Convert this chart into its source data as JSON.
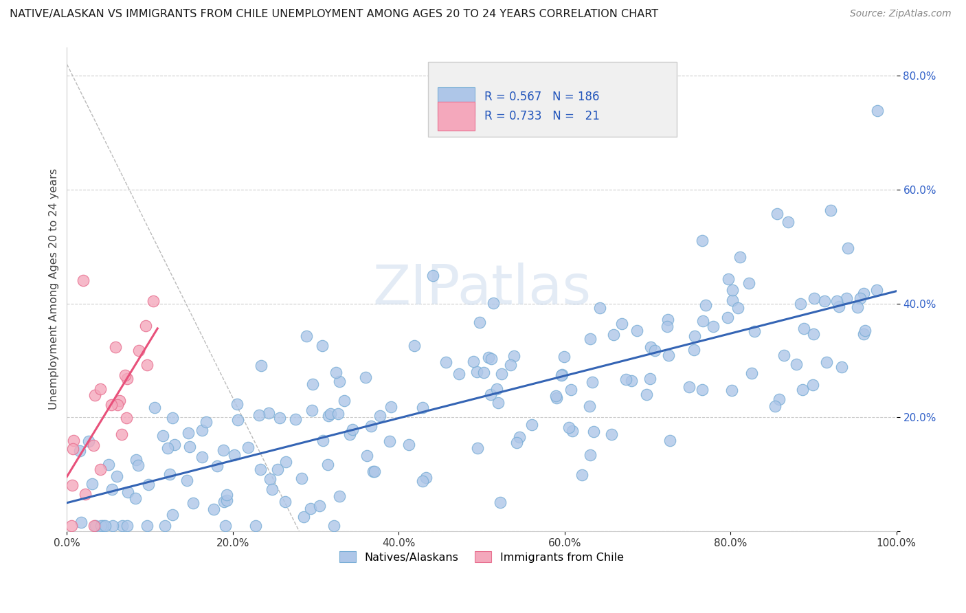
{
  "title": "NATIVE/ALASKAN VS IMMIGRANTS FROM CHILE UNEMPLOYMENT AMONG AGES 20 TO 24 YEARS CORRELATION CHART",
  "source": "Source: ZipAtlas.com",
  "ylabel": "Unemployment Among Ages 20 to 24 years",
  "xlim": [
    0.0,
    1.0
  ],
  "ylim": [
    0.0,
    0.85
  ],
  "xticklabels": [
    "0.0%",
    "20.0%",
    "40.0%",
    "60.0%",
    "80.0%",
    "100.0%"
  ],
  "yticklabels": [
    "",
    "20.0%",
    "40.0%",
    "60.0%",
    "80.0%"
  ],
  "watermark": "ZIPatlas",
  "native_color": "#aec6e8",
  "chile_color": "#f4a8bc",
  "native_edge": "#7aaed6",
  "chile_edge": "#e87090",
  "regression_native_color": "#3464b4",
  "regression_chile_color": "#e8507a",
  "R_native": 0.567,
  "N_native": 186,
  "R_chile": 0.733,
  "N_chile": 21
}
